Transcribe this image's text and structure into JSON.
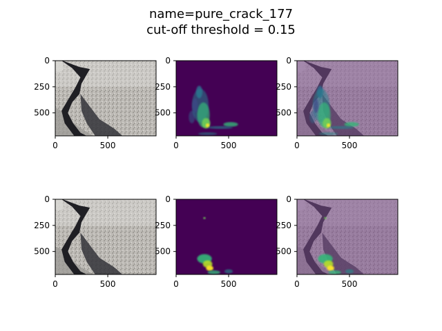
{
  "figure": {
    "title_line1": "name=pure_crack_177",
    "title_line2": "cut-off threshold = 0.15"
  },
  "colors": {
    "viridis_background": "#440154",
    "viridis_highlight": "#35b779",
    "viridis_peak": "#fde725",
    "axis": "#000000"
  },
  "chart_data": [
    {
      "type": "heatmap",
      "row": 1,
      "col": 1,
      "content": "crack photograph",
      "xticks": [
        "0",
        "500"
      ],
      "yticks": [
        "0",
        "250",
        "500"
      ],
      "xlim": [
        0,
        960
      ],
      "ylim": [
        720,
        0
      ]
    },
    {
      "type": "heatmap",
      "row": 1,
      "col": 2,
      "content": "saliency map (viridis)",
      "xticks": [
        "0",
        "500"
      ],
      "yticks": [
        "0",
        "250",
        "500"
      ],
      "xlim": [
        0,
        960
      ],
      "ylim": [
        720,
        0
      ]
    },
    {
      "type": "heatmap",
      "row": 1,
      "col": 3,
      "content": "photograph with saliency overlay",
      "xticks": [
        "0",
        "500"
      ],
      "yticks": [
        "0",
        "250",
        "500"
      ],
      "xlim": [
        0,
        960
      ],
      "ylim": [
        720,
        0
      ]
    },
    {
      "type": "heatmap",
      "row": 2,
      "col": 1,
      "content": "crack photograph",
      "xticks": [
        "0",
        "500"
      ],
      "yticks": [
        "0",
        "250",
        "500"
      ],
      "xlim": [
        0,
        960
      ],
      "ylim": [
        720,
        0
      ]
    },
    {
      "type": "heatmap",
      "row": 2,
      "col": 2,
      "content": "thresholded map (viridis)",
      "xticks": [
        "0",
        "500"
      ],
      "yticks": [
        "0",
        "250",
        "500"
      ],
      "xlim": [
        0,
        960
      ],
      "ylim": [
        720,
        0
      ]
    },
    {
      "type": "heatmap",
      "row": 2,
      "col": 3,
      "content": "photograph with thresholded overlay",
      "xticks": [
        "0",
        "500"
      ],
      "yticks": [
        "0",
        "250",
        "500"
      ],
      "xlim": [
        0,
        960
      ],
      "ylim": [
        720,
        0
      ]
    }
  ]
}
